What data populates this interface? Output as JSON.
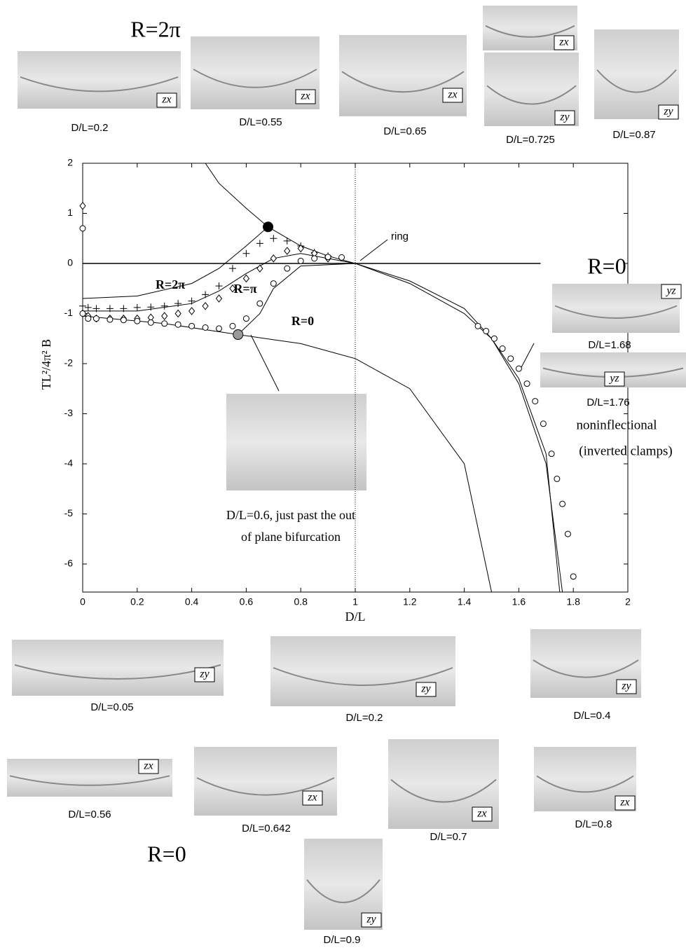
{
  "chart_data": {
    "type": "scatter",
    "xlabel": "D/L",
    "ylabel": "TL²/4π² B",
    "xlim": [
      0,
      2
    ],
    "ylim": [
      -6.56,
      2
    ],
    "xticks": [
      0,
      0.2,
      0.4,
      0.6,
      0.8,
      1,
      1.2,
      1.4,
      1.6,
      1.8,
      2
    ],
    "yticks": [
      -6,
      -5,
      -4,
      -3,
      -2,
      -1,
      0,
      1,
      2
    ],
    "vline": 1,
    "series": [
      {
        "name": "R=2π",
        "marker": "plus",
        "color": "#000000",
        "x": [
          0,
          0.02,
          0.05,
          0.1,
          0.15,
          0.2,
          0.25,
          0.3,
          0.35,
          0.4,
          0.45,
          0.5,
          0.55,
          0.6,
          0.65,
          0.7,
          0.75,
          0.8,
          0.85,
          0.9
        ],
        "values": [
          -0.85,
          -0.88,
          -0.9,
          -0.9,
          -0.9,
          -0.88,
          -0.87,
          -0.85,
          -0.8,
          -0.75,
          -0.62,
          -0.45,
          -0.1,
          0.2,
          0.4,
          0.5,
          0.45,
          0.35,
          0.22,
          0.15
        ]
      },
      {
        "name": "R=π",
        "marker": "diamond",
        "color": "#000000",
        "x": [
          0,
          0,
          0.02,
          0.05,
          0.1,
          0.15,
          0.2,
          0.25,
          0.3,
          0.35,
          0.4,
          0.45,
          0.5,
          0.55,
          0.6,
          0.65,
          0.7,
          0.75,
          0.8,
          0.85,
          0.9
        ],
        "values": [
          1.15,
          -1.0,
          -1.05,
          -1.1,
          -1.1,
          -1.1,
          -1.1,
          -1.08,
          -1.05,
          -1.0,
          -0.95,
          -0.85,
          -0.7,
          -0.5,
          -0.3,
          -0.1,
          0.1,
          0.25,
          0.3,
          0.2,
          0.1
        ]
      },
      {
        "name": "R=0",
        "marker": "circle",
        "color": "#000000",
        "x": [
          0,
          0,
          0.02,
          0.05,
          0.1,
          0.15,
          0.2,
          0.25,
          0.3,
          0.35,
          0.4,
          0.45,
          0.5,
          0.55,
          0.6,
          0.65,
          0.7,
          0.75,
          0.8,
          0.85,
          0.9,
          0.95,
          1.45,
          1.48,
          1.51,
          1.54,
          1.57,
          1.6,
          1.63,
          1.66,
          1.69,
          1.72,
          1.74,
          1.76,
          1.78,
          1.8
        ],
        "values": [
          0.7,
          -1.0,
          -1.1,
          -1.1,
          -1.12,
          -1.13,
          -1.15,
          -1.18,
          -1.2,
          -1.22,
          -1.25,
          -1.28,
          -1.3,
          -1.25,
          -1.1,
          -0.8,
          -0.4,
          -0.1,
          0.05,
          0.1,
          0.13,
          0.12,
          -1.25,
          -1.35,
          -1.5,
          -1.7,
          -1.9,
          -2.1,
          -2.4,
          -2.75,
          -3.2,
          -3.8,
          -4.3,
          -4.8,
          -5.4,
          -6.25
        ]
      },
      {
        "marker": "dot",
        "color": "#000000",
        "x": [
          0.68
        ],
        "values": [
          0.73
        ]
      },
      {
        "marker": "dot",
        "color": "#999999",
        "x": [
          0.57
        ],
        "values": [
          -1.42
        ]
      }
    ],
    "curves": [
      {
        "x": [
          0,
          1.68
        ],
        "values": [
          0,
          0
        ],
        "width": 1.5
      },
      {
        "x": [
          0.45,
          0.5,
          0.6,
          0.68,
          0.8,
          0.9,
          1,
          1.2,
          1.4,
          1.5,
          1.6,
          1.7,
          1.75
        ],
        "values": [
          2.0,
          1.6,
          1.1,
          0.73,
          0.35,
          0.15,
          0,
          -0.4,
          -1.0,
          -1.5,
          -2.3,
          -3.8,
          -6.56
        ],
        "width": 1
      },
      {
        "x": [
          0,
          0.2,
          0.4,
          0.5,
          0.6,
          0.68
        ],
        "values": [
          -0.7,
          -0.65,
          -0.4,
          -0.1,
          0.35,
          0.73
        ],
        "width": 1
      },
      {
        "x": [
          0,
          0.2,
          0.4,
          0.5,
          0.6,
          0.7,
          0.8,
          1
        ],
        "values": [
          -0.95,
          -0.95,
          -0.8,
          -0.55,
          -0.2,
          0.1,
          0.2,
          0
        ],
        "width": 1
      },
      {
        "x": [
          0,
          0.3,
          0.57,
          0.65,
          0.7,
          0.8,
          1
        ],
        "values": [
          -1.05,
          -1.2,
          -1.42,
          -1.0,
          -0.5,
          -0.05,
          0
        ],
        "width": 1
      },
      {
        "x": [
          0.57,
          0.8,
          1.0,
          1.2,
          1.4,
          1.5
        ],
        "values": [
          -1.42,
          -1.6,
          -1.9,
          -2.5,
          -4.0,
          -6.56
        ],
        "width": 1
      },
      {
        "x": [
          1,
          1.2,
          1.4,
          1.5,
          1.6,
          1.7,
          1.76
        ],
        "values": [
          0,
          -0.35,
          -0.9,
          -1.5,
          -2.4,
          -4.0,
          -6.56
        ],
        "width": 1
      }
    ],
    "annotations": [
      "ring",
      "noninflectional",
      "(inverted clamps)",
      "D/L=0.6, just past the out",
      "of plane bifurcation"
    ]
  },
  "labels": {
    "top": "R=2π",
    "right": "R=0",
    "bottom": "R=0"
  },
  "photos": [
    {
      "caption": "D/L=0.2",
      "tag": "zx"
    },
    {
      "caption": "D/L=0.55",
      "tag": "zx"
    },
    {
      "caption": "D/L=0.65",
      "tag": "zx"
    },
    {
      "tag": "zx"
    },
    {
      "caption": "D/L=0.725",
      "tag": "zy"
    },
    {
      "caption": "D/L=0.87",
      "tag": "zy"
    },
    {
      "caption": "D/L=1.68",
      "tag": "yz"
    },
    {
      "caption": "D/L=1.76",
      "tag": "yz"
    },
    {},
    {
      "caption": "D/L=0.05",
      "tag": "zy"
    },
    {
      "caption": "D/L=0.2",
      "tag": "zy"
    },
    {
      "caption": "D/L=0.4",
      "tag": "zy"
    },
    {
      "caption": "D/L=0.56",
      "tag": "zx"
    },
    {
      "caption": "D/L=0.642",
      "tag": "zx"
    },
    {
      "caption": "D/L=0.7",
      "tag": "zx"
    },
    {
      "caption": "D/L=0.8",
      "tag": "zx"
    },
    {
      "caption": "D/L=0.9",
      "tag": "zy"
    }
  ]
}
